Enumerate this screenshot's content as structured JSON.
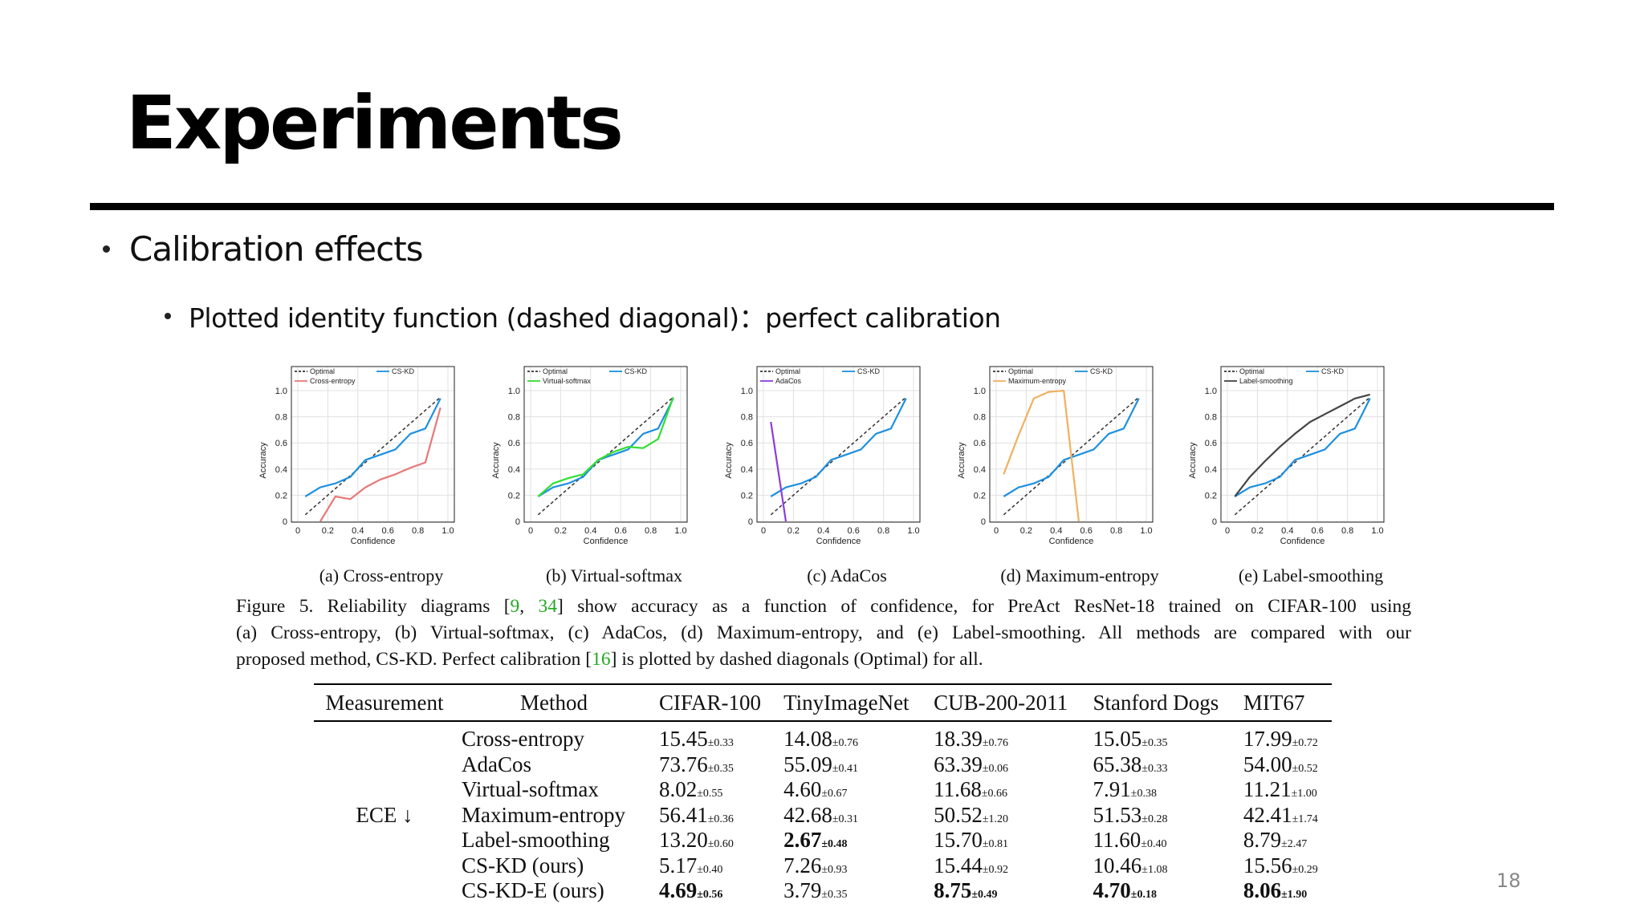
{
  "slide": {
    "title": "Experiments",
    "bullet1": "Calibration effects",
    "bullet2": "Plotted identity function (dashed diagonal)：perfect calibration",
    "page_number": "18"
  },
  "colors": {
    "optimal": "#333333",
    "cskd": "#1e90e0"
  },
  "chart_data": [
    {
      "type": "line",
      "xlabel": "Confidence",
      "ylabel": "Accuracy",
      "xlim": [
        0,
        1
      ],
      "ylim": [
        0,
        1
      ],
      "xticks": [
        "0",
        "0.2",
        "0.4",
        "0.6",
        "0.8",
        "1.0"
      ],
      "yticks": [
        "0",
        "0.2",
        "0.4",
        "0.6",
        "0.8",
        "1.0"
      ],
      "caption": "(a) Cross-entropy",
      "series": [
        {
          "name": "Optimal",
          "color": "#333333",
          "dashed": true,
          "x": [
            0.05,
            0.95
          ],
          "y": [
            0.05,
            0.95
          ]
        },
        {
          "name": "CS-KD",
          "color": "#1e90e0",
          "x": [
            0.05,
            0.15,
            0.25,
            0.35,
            0.45,
            0.55,
            0.65,
            0.75,
            0.85,
            0.95
          ],
          "y": [
            0.19,
            0.26,
            0.29,
            0.34,
            0.47,
            0.51,
            0.55,
            0.67,
            0.71,
            0.94
          ]
        },
        {
          "name": "Cross-entropy",
          "color": "#e87878",
          "x": [
            0.15,
            0.25,
            0.35,
            0.45,
            0.55,
            0.65,
            0.75,
            0.85,
            0.95
          ],
          "y": [
            0.0,
            0.19,
            0.17,
            0.26,
            0.32,
            0.36,
            0.41,
            0.45,
            0.87
          ]
        }
      ]
    },
    {
      "type": "line",
      "xlabel": "Confidence",
      "ylabel": "Accuracy",
      "xlim": [
        0,
        1
      ],
      "ylim": [
        0,
        1
      ],
      "xticks": [
        "0",
        "0.2",
        "0.4",
        "0.6",
        "0.8",
        "1.0"
      ],
      "yticks": [
        "0",
        "0.2",
        "0.4",
        "0.6",
        "0.8",
        "1.0"
      ],
      "caption": "(b) Virtual-softmax",
      "series": [
        {
          "name": "Optimal",
          "color": "#333333",
          "dashed": true,
          "x": [
            0.05,
            0.95
          ],
          "y": [
            0.05,
            0.95
          ]
        },
        {
          "name": "CS-KD",
          "color": "#1e90e0",
          "x": [
            0.05,
            0.15,
            0.25,
            0.35,
            0.45,
            0.55,
            0.65,
            0.75,
            0.85,
            0.95
          ],
          "y": [
            0.19,
            0.26,
            0.29,
            0.34,
            0.47,
            0.51,
            0.55,
            0.67,
            0.71,
            0.94
          ]
        },
        {
          "name": "Virtual-softmax",
          "color": "#33dd33",
          "x": [
            0.05,
            0.15,
            0.25,
            0.35,
            0.45,
            0.55,
            0.65,
            0.75,
            0.85,
            0.95
          ],
          "y": [
            0.19,
            0.29,
            0.33,
            0.36,
            0.47,
            0.53,
            0.57,
            0.56,
            0.63,
            0.95
          ]
        }
      ]
    },
    {
      "type": "line",
      "xlabel": "Confidence",
      "ylabel": "Accuracy",
      "xlim": [
        0,
        1
      ],
      "ylim": [
        0,
        1
      ],
      "xticks": [
        "0",
        "0.2",
        "0.4",
        "0.6",
        "0.8",
        "1.0"
      ],
      "yticks": [
        "0",
        "0.2",
        "0.4",
        "0.6",
        "0.8",
        "1.0"
      ],
      "caption": "(c) AdaCos",
      "series": [
        {
          "name": "Optimal",
          "color": "#333333",
          "dashed": true,
          "x": [
            0.05,
            0.95
          ],
          "y": [
            0.05,
            0.95
          ]
        },
        {
          "name": "CS-KD",
          "color": "#1e90e0",
          "x": [
            0.05,
            0.15,
            0.25,
            0.35,
            0.45,
            0.55,
            0.65,
            0.75,
            0.85,
            0.95
          ],
          "y": [
            0.19,
            0.26,
            0.29,
            0.34,
            0.47,
            0.51,
            0.55,
            0.67,
            0.71,
            0.94
          ]
        },
        {
          "name": "AdaCos",
          "color": "#8a3ed8",
          "x": [
            0.05,
            0.15
          ],
          "y": [
            0.76,
            0.0
          ]
        }
      ]
    },
    {
      "type": "line",
      "xlabel": "Confidence",
      "ylabel": "Accuracy",
      "xlim": [
        0,
        1
      ],
      "ylim": [
        0,
        1
      ],
      "xticks": [
        "0",
        "0.2",
        "0.4",
        "0.6",
        "0.8",
        "1.0"
      ],
      "yticks": [
        "0",
        "0.2",
        "0.4",
        "0.6",
        "0.8",
        "1.0"
      ],
      "caption": "(d) Maximum-entropy",
      "series": [
        {
          "name": "Optimal",
          "color": "#333333",
          "dashed": true,
          "x": [
            0.05,
            0.95
          ],
          "y": [
            0.05,
            0.95
          ]
        },
        {
          "name": "CS-KD",
          "color": "#1e90e0",
          "x": [
            0.05,
            0.15,
            0.25,
            0.35,
            0.45,
            0.55,
            0.65,
            0.75,
            0.85,
            0.95
          ],
          "y": [
            0.19,
            0.26,
            0.29,
            0.34,
            0.47,
            0.51,
            0.55,
            0.67,
            0.71,
            0.94
          ]
        },
        {
          "name": "Maximum-entropy",
          "color": "#f0b060",
          "x": [
            0.05,
            0.15,
            0.25,
            0.35,
            0.45,
            0.55
          ],
          "y": [
            0.36,
            0.66,
            0.94,
            0.99,
            1.0,
            0.0
          ]
        }
      ]
    },
    {
      "type": "line",
      "xlabel": "Confidence",
      "ylabel": "Accuracy",
      "xlim": [
        0,
        1
      ],
      "ylim": [
        0,
        1
      ],
      "xticks": [
        "0",
        "0.2",
        "0.4",
        "0.6",
        "0.8",
        "1.0"
      ],
      "yticks": [
        "0",
        "0.2",
        "0.4",
        "0.6",
        "0.8",
        "1.0"
      ],
      "caption": "(e) Label-smoothing",
      "series": [
        {
          "name": "Optimal",
          "color": "#333333",
          "dashed": true,
          "x": [
            0.05,
            0.95
          ],
          "y": [
            0.05,
            0.95
          ]
        },
        {
          "name": "CS-KD",
          "color": "#1e90e0",
          "x": [
            0.05,
            0.15,
            0.25,
            0.35,
            0.45,
            0.55,
            0.65,
            0.75,
            0.85,
            0.95
          ],
          "y": [
            0.19,
            0.26,
            0.29,
            0.34,
            0.47,
            0.51,
            0.55,
            0.67,
            0.71,
            0.94
          ]
        },
        {
          "name": "Label-smoothing",
          "color": "#444444",
          "x": [
            0.05,
            0.15,
            0.25,
            0.35,
            0.45,
            0.55,
            0.65,
            0.75,
            0.85,
            0.95
          ],
          "y": [
            0.19,
            0.34,
            0.46,
            0.57,
            0.67,
            0.76,
            0.82,
            0.88,
            0.94,
            0.97
          ]
        }
      ]
    }
  ],
  "caption": {
    "line1_pre": "Figure 5.   Reliability diagrams [",
    "ref1": "9",
    "line1_mid": ", ",
    "ref2": "34",
    "line1_post": "] show accuracy as a function of confidence, for PreAct ResNet-18 trained on CIFAR-100 using",
    "line2": "(a) Cross-entropy, (b) Virtual-softmax, (c) AdaCos, (d) Maximum-entropy, and (e) Label-smoothing. All methods are compared with our",
    "line3_pre": "proposed method, CS-KD. Perfect calibration [",
    "ref3": "16",
    "line3_post": "] is plotted by dashed diagonals (Optimal) for all."
  },
  "table": {
    "headers": [
      "Measurement",
      "Method",
      "CIFAR-100",
      "TinyImageNet",
      "CUB-200-2011",
      "Stanford Dogs",
      "MIT67"
    ],
    "measurement": "ECE ↓",
    "rows": [
      {
        "method": "Cross-entropy",
        "cells": [
          {
            "v": "15.45",
            "s": "±0.33"
          },
          {
            "v": "14.08",
            "s": "±0.76"
          },
          {
            "v": "18.39",
            "s": "±0.76"
          },
          {
            "v": "15.05",
            "s": "±0.35"
          },
          {
            "v": "17.99",
            "s": "±0.72"
          }
        ]
      },
      {
        "method": "AdaCos",
        "cells": [
          {
            "v": "73.76",
            "s": "±0.35"
          },
          {
            "v": "55.09",
            "s": "±0.41"
          },
          {
            "v": "63.39",
            "s": "±0.06"
          },
          {
            "v": "65.38",
            "s": "±0.33"
          },
          {
            "v": "54.00",
            "s": "±0.52"
          }
        ]
      },
      {
        "method": "Virtual-softmax",
        "cells": [
          {
            "v": "8.02",
            "s": "±0.55"
          },
          {
            "v": "4.60",
            "s": "±0.67"
          },
          {
            "v": "11.68",
            "s": "±0.66"
          },
          {
            "v": "7.91",
            "s": "±0.38"
          },
          {
            "v": "11.21",
            "s": "±1.00"
          }
        ]
      },
      {
        "method": "Maximum-entropy",
        "cells": [
          {
            "v": "56.41",
            "s": "±0.36"
          },
          {
            "v": "42.68",
            "s": "±0.31"
          },
          {
            "v": "50.52",
            "s": "±1.20"
          },
          {
            "v": "51.53",
            "s": "±0.28"
          },
          {
            "v": "42.41",
            "s": "±1.74"
          }
        ]
      },
      {
        "method": "Label-smoothing",
        "cells": [
          {
            "v": "13.20",
            "s": "±0.60"
          },
          {
            "v": "2.67",
            "s": "±0.48",
            "bold": true
          },
          {
            "v": "15.70",
            "s": "±0.81"
          },
          {
            "v": "11.60",
            "s": "±0.40"
          },
          {
            "v": "8.79",
            "s": "±2.47"
          }
        ]
      },
      {
        "method": "CS-KD (ours)",
        "cells": [
          {
            "v": "5.17",
            "s": "±0.40"
          },
          {
            "v": "7.26",
            "s": "±0.93"
          },
          {
            "v": "15.44",
            "s": "±0.92"
          },
          {
            "v": "10.46",
            "s": "±1.08"
          },
          {
            "v": "15.56",
            "s": "±0.29"
          }
        ]
      },
      {
        "method": "CS-KD-E (ours)",
        "cells": [
          {
            "v": "4.69",
            "s": "±0.56",
            "bold": true
          },
          {
            "v": "3.79",
            "s": "±0.35"
          },
          {
            "v": "8.75",
            "s": "±0.49",
            "bold": true
          },
          {
            "v": "4.70",
            "s": "±0.18",
            "bold": true
          },
          {
            "v": "8.06",
            "s": "±1.90",
            "bold": true
          }
        ]
      }
    ]
  }
}
